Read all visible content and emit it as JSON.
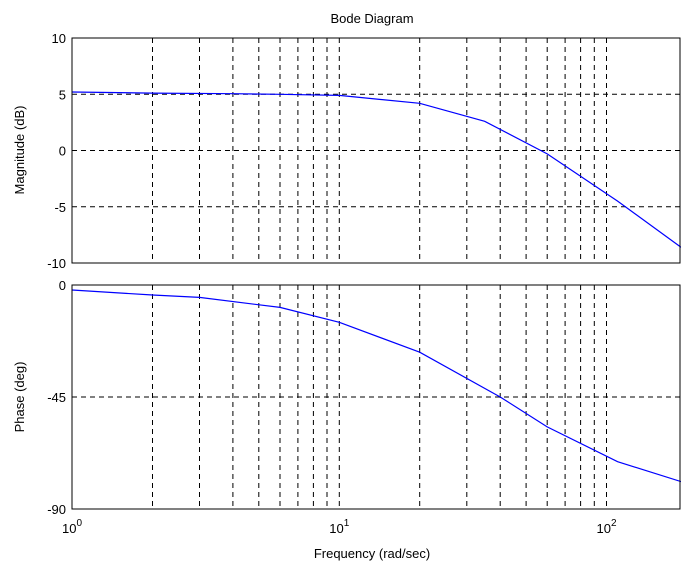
{
  "chart_data": {
    "type": "line",
    "title": "Bode Diagram",
    "xlabel": "Frequency (rad/sec)",
    "x_scale": "log",
    "xlim": [
      1,
      190
    ],
    "x_ticks": [
      {
        "value": 1,
        "base": "10",
        "exp": "0"
      },
      {
        "value": 10,
        "base": "10",
        "exp": "1"
      },
      {
        "value": 100,
        "base": "10",
        "exp": "2"
      }
    ],
    "grid": true,
    "colors": {
      "line": "#0000ff",
      "grid": "#000000",
      "axes": "#000000",
      "background": "#ffffff"
    },
    "panels": [
      {
        "name": "magnitude",
        "ylabel": "Magnitude (dB)",
        "ylim": [
          -10,
          10
        ],
        "y_ticks": [
          {
            "value": 10,
            "label": "10"
          },
          {
            "value": 5,
            "label": "5"
          },
          {
            "value": 0,
            "label": "0"
          },
          {
            "value": -5,
            "label": "-5"
          },
          {
            "value": -10,
            "label": "-10"
          }
        ],
        "series": [
          {
            "x": [
              1,
              2,
              4,
              6,
              10,
              20,
              35,
              60,
              110,
              190
            ],
            "y": [
              5.2,
              5.1,
              5.05,
              5.0,
              4.9,
              4.2,
              2.6,
              -0.3,
              -4.5,
              -8.6
            ]
          }
        ]
      },
      {
        "name": "phase",
        "ylabel": "Phase (deg)",
        "ylim": [
          -90,
          0
        ],
        "y_ticks": [
          {
            "value": 0,
            "label": "0"
          },
          {
            "value": -45,
            "label": "-45"
          },
          {
            "value": -90,
            "label": "-90"
          }
        ],
        "series": [
          {
            "x": [
              1,
              2,
              3,
              6,
              10,
              20,
              40,
              60,
              110,
              190
            ],
            "y": [
              -2,
              -4,
              -5,
              -9,
              -15,
              -27,
              -45,
              -57,
              -71,
              -79
            ]
          }
        ]
      }
    ]
  }
}
